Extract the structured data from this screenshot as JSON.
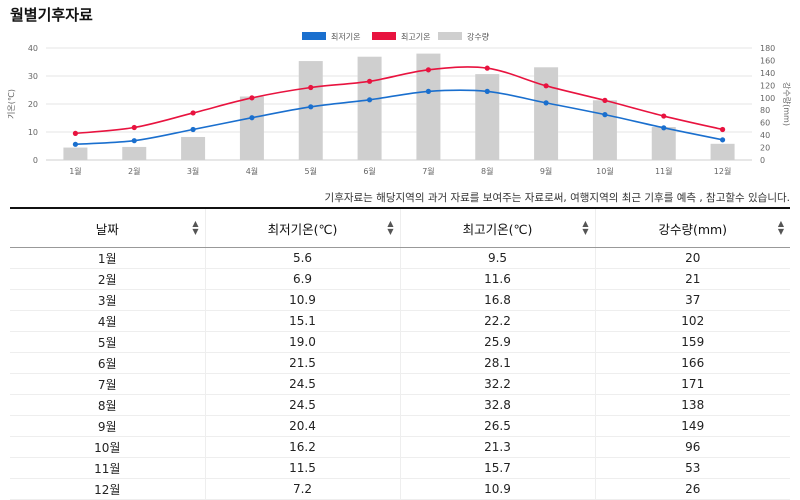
{
  "page": {
    "title": "월별기후자료",
    "note": "기후자료는 해당지역의 과거 자료를 보여주는 자료로써, 여행지역의 최근 기후를 예측 , 참고할수 있습니다."
  },
  "colors": {
    "min_temp": "#1a6fce",
    "max_temp": "#e8133f",
    "precip": "#cfcfcf",
    "grid": "#e6e6e6",
    "axis_text": "#666666"
  },
  "chart_data": {
    "type": "bar",
    "categories": [
      "1월",
      "2월",
      "3월",
      "4월",
      "5월",
      "6월",
      "7월",
      "8월",
      "9월",
      "10월",
      "11월",
      "12월"
    ],
    "series": [
      {
        "name": "최저기온",
        "type": "line",
        "axis": "left",
        "values": [
          5.6,
          6.9,
          10.9,
          15.1,
          19.0,
          21.5,
          24.5,
          24.5,
          20.4,
          16.2,
          11.5,
          7.2
        ]
      },
      {
        "name": "최고기온",
        "type": "line",
        "axis": "left",
        "values": [
          9.5,
          11.6,
          16.8,
          22.2,
          25.9,
          28.1,
          32.2,
          32.8,
          26.5,
          21.3,
          15.7,
          10.9
        ]
      },
      {
        "name": "강수량",
        "type": "bar",
        "axis": "right",
        "values": [
          20,
          21,
          37,
          102,
          159,
          166,
          171,
          138,
          149,
          96,
          53,
          26
        ]
      }
    ],
    "ylabel": "기온(℃)",
    "y2label": "강수량(mm)",
    "ylim": [
      0,
      40
    ],
    "y2lim": [
      0,
      180
    ],
    "yticks": [
      "0",
      "10",
      "20",
      "30",
      "40"
    ],
    "y2ticks": [
      "0",
      "20",
      "40",
      "60",
      "80",
      "100",
      "120",
      "140",
      "160",
      "180"
    ],
    "grid": true,
    "legend": "top-center"
  },
  "table": {
    "headers": [
      "날짜",
      "최저기온(℃)",
      "최고기온(℃)",
      "강수량(mm)"
    ],
    "sort_icon": "sort-icon",
    "rows": [
      [
        "1월",
        "5.6",
        "9.5",
        "20"
      ],
      [
        "2월",
        "6.9",
        "11.6",
        "21"
      ],
      [
        "3월",
        "10.9",
        "16.8",
        "37"
      ],
      [
        "4월",
        "15.1",
        "22.2",
        "102"
      ],
      [
        "5월",
        "19.0",
        "25.9",
        "159"
      ],
      [
        "6월",
        "21.5",
        "28.1",
        "166"
      ],
      [
        "7월",
        "24.5",
        "32.2",
        "171"
      ],
      [
        "8월",
        "24.5",
        "32.8",
        "138"
      ],
      [
        "9월",
        "20.4",
        "26.5",
        "149"
      ],
      [
        "10월",
        "16.2",
        "21.3",
        "96"
      ],
      [
        "11월",
        "11.5",
        "15.7",
        "53"
      ],
      [
        "12월",
        "7.2",
        "10.9",
        "26"
      ]
    ]
  }
}
